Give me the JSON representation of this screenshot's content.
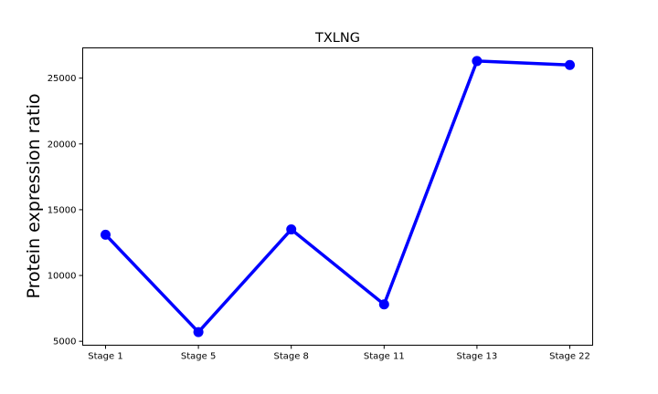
{
  "chart_data": {
    "type": "line",
    "title": "TXLNG",
    "xlabel": "",
    "ylabel": "Protein expression ratio",
    "categories": [
      "Stage 1",
      "Stage 5",
      "Stage 8",
      "Stage 11",
      "Stage 13",
      "Stage 22"
    ],
    "series": [
      {
        "values": [
          13100,
          5700,
          13500,
          7800,
          26300,
          26000
        ]
      }
    ],
    "ylim": [
      4700,
      27300
    ],
    "yticks": [
      5000,
      10000,
      15000,
      20000,
      25000
    ],
    "grid": false,
    "line_color": "#0000ff"
  }
}
